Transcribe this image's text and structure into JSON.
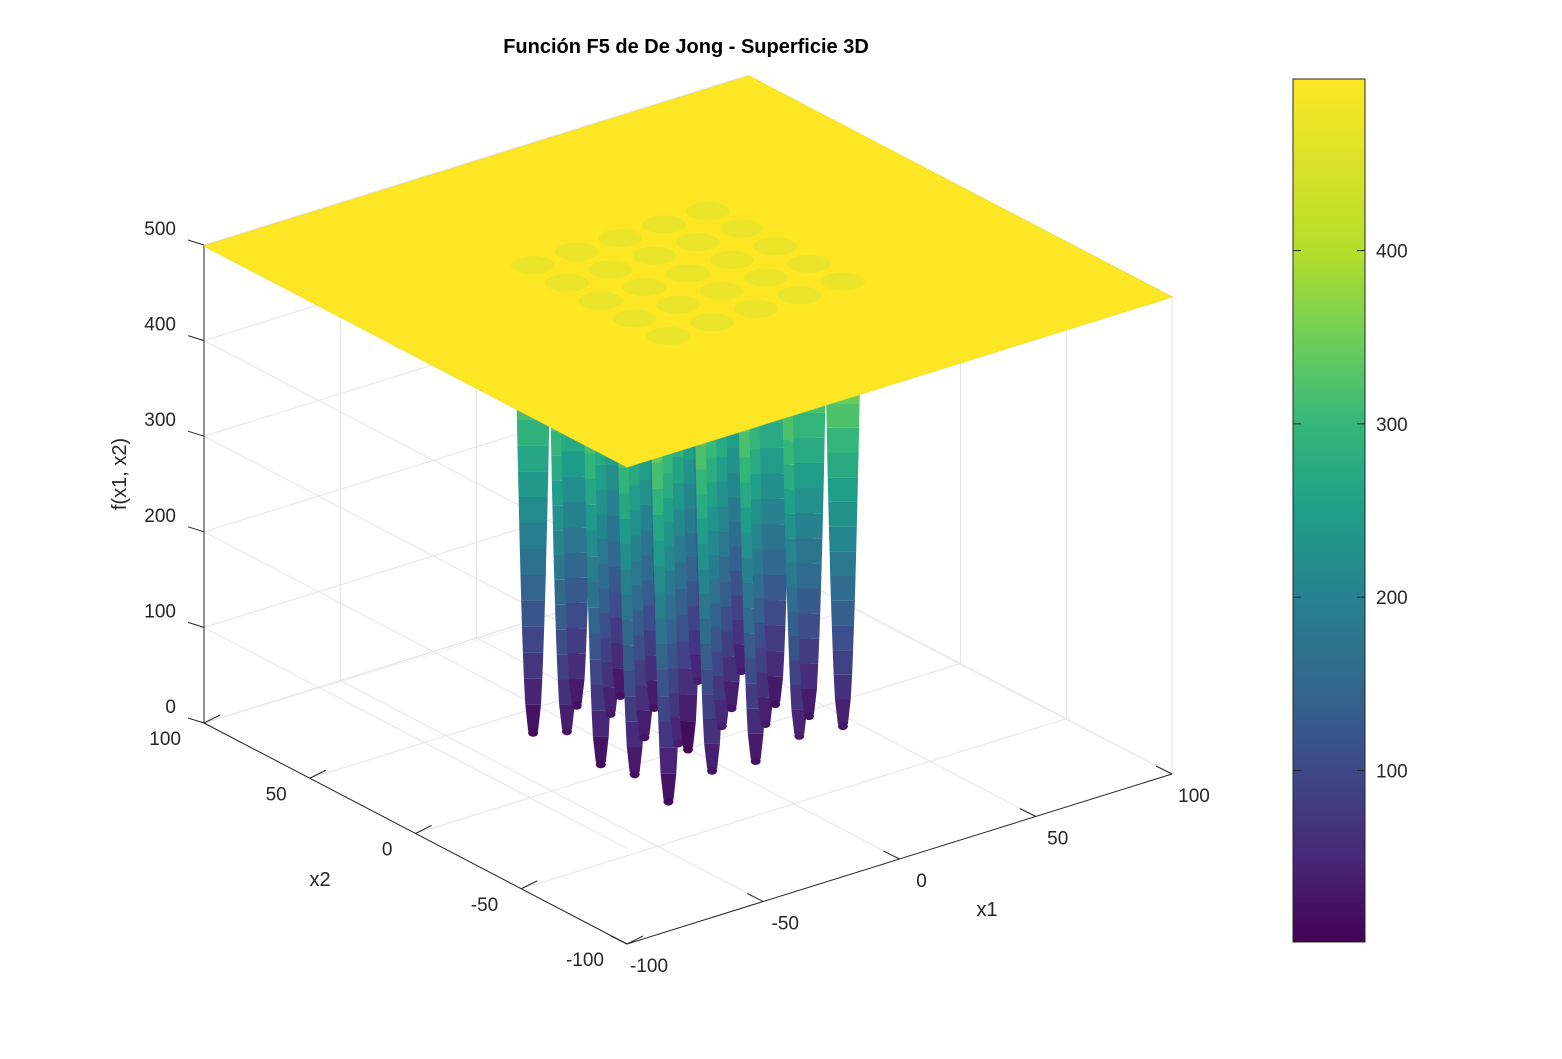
{
  "chart_data": {
    "type": "surface",
    "title": "Función F5 de De Jong - Superficie 3D",
    "xlabel": "x1",
    "ylabel": "x2",
    "zlabel": "f(x1, x2)",
    "xlim": [
      -100,
      100
    ],
    "ylim": [
      -100,
      100
    ],
    "zlim": [
      0,
      500
    ],
    "x_ticks": [
      -100,
      -50,
      0,
      50,
      100
    ],
    "y_ticks": [
      -100,
      -50,
      0,
      50,
      100
    ],
    "z_ticks": [
      0,
      100,
      200,
      300,
      400,
      500
    ],
    "x_tick_labels": [
      "-100",
      "-50",
      "0",
      "50",
      "100"
    ],
    "y_tick_labels": [
      "-100",
      "-50",
      "0",
      "50",
      "100"
    ],
    "z_tick_labels": [
      "0",
      "100",
      "200",
      "300",
      "400",
      "500"
    ],
    "plateau_value": 499.0,
    "well_centers": [
      -32,
      -16,
      0,
      16,
      32
    ],
    "well_minima": [
      [
        12,
        30,
        26,
        38,
        34
      ],
      [
        22,
        40,
        44,
        32,
        26
      ],
      [
        14,
        28,
        1,
        30,
        20
      ],
      [
        30,
        34,
        26,
        40,
        36
      ],
      [
        10,
        24,
        20,
        30,
        28
      ]
    ],
    "grid": true,
    "colormap": "viridis",
    "colorbar": {
      "location": "right",
      "range": [
        1,
        499
      ],
      "ticks": [
        100,
        200,
        300,
        400
      ],
      "tick_labels": [
        "100",
        "200",
        "300",
        "400"
      ]
    }
  }
}
